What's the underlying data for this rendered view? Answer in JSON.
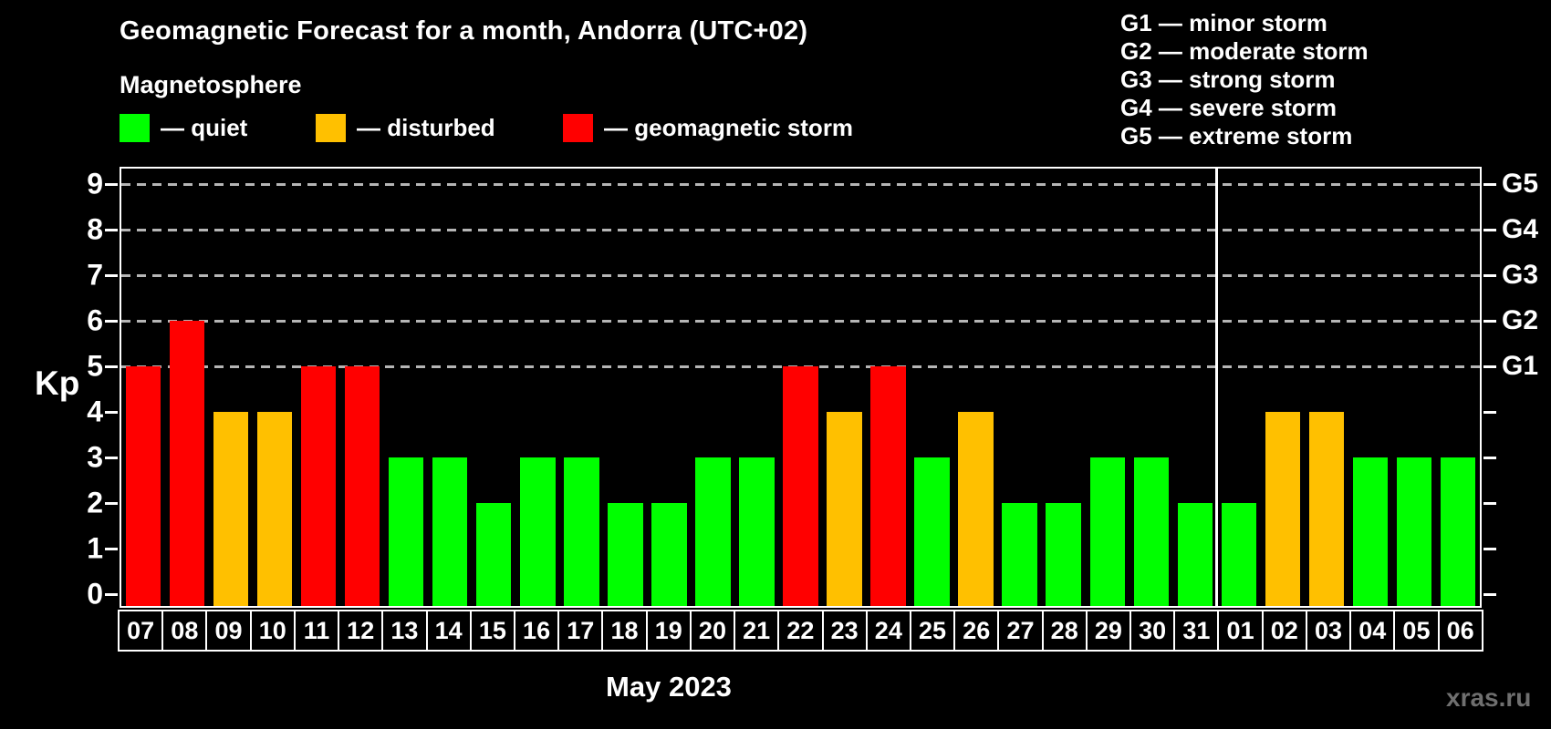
{
  "title": "Geomagnetic Forecast for a month, Andorra (UTC+02)",
  "subtitle": "Magnetosphere",
  "legend": [
    {
      "label": "— quiet",
      "state": "quiet",
      "color": "#00ff00"
    },
    {
      "label": "— disturbed",
      "state": "disturbed",
      "color": "#ffc000"
    },
    {
      "label": "— geomagnetic storm",
      "state": "storm",
      "color": "#ff0000"
    }
  ],
  "g_legend": [
    "G1 — minor storm",
    "G2 — moderate storm",
    "G3 — strong storm",
    "G4 — severe storm",
    "G5 — extreme storm"
  ],
  "axis": {
    "y_label": "Kp",
    "y_ticks": [
      0,
      1,
      2,
      3,
      4,
      5,
      6,
      7,
      8,
      9
    ],
    "g_levels": [
      {
        "kp": 5,
        "label": "G1"
      },
      {
        "kp": 6,
        "label": "G2"
      },
      {
        "kp": 7,
        "label": "G3"
      },
      {
        "kp": 8,
        "label": "G4"
      },
      {
        "kp": 9,
        "label": "G5"
      }
    ]
  },
  "x_caption": "May 2023",
  "watermark": "xras.ru",
  "chart_data": {
    "type": "bar",
    "title": "Geomagnetic Forecast for a month, Andorra (UTC+02)",
    "xlabel": "May 2023",
    "ylabel": "Kp",
    "ylim": [
      0,
      9.4
    ],
    "grid": "dashed horizontal at Kp 5-9 (G1-G5)",
    "legend_position": "top-left",
    "categories": [
      "07",
      "08",
      "09",
      "10",
      "11",
      "12",
      "13",
      "14",
      "15",
      "16",
      "17",
      "18",
      "19",
      "20",
      "21",
      "22",
      "23",
      "24",
      "25",
      "26",
      "27",
      "28",
      "29",
      "30",
      "31",
      "01",
      "02",
      "03",
      "04",
      "05",
      "06"
    ],
    "values": [
      5,
      6,
      4,
      4,
      5,
      5,
      3,
      3,
      2,
      3,
      3,
      2,
      2,
      3,
      3,
      5,
      4,
      5,
      3,
      4,
      2,
      2,
      3,
      3,
      2,
      2,
      4,
      4,
      3,
      3,
      3
    ],
    "states": [
      "storm",
      "storm",
      "disturbed",
      "disturbed",
      "storm",
      "storm",
      "quiet",
      "quiet",
      "quiet",
      "quiet",
      "quiet",
      "quiet",
      "quiet",
      "quiet",
      "quiet",
      "storm",
      "disturbed",
      "storm",
      "quiet",
      "disturbed",
      "quiet",
      "quiet",
      "quiet",
      "quiet",
      "quiet",
      "quiet",
      "disturbed",
      "disturbed",
      "quiet",
      "quiet",
      "quiet"
    ],
    "colors": {
      "quiet": "#00ff00",
      "disturbed": "#ffc000",
      "storm": "#ff0000"
    },
    "month_boundary_index": 25,
    "gridlines_at": [
      5,
      6,
      7,
      8,
      9
    ]
  }
}
